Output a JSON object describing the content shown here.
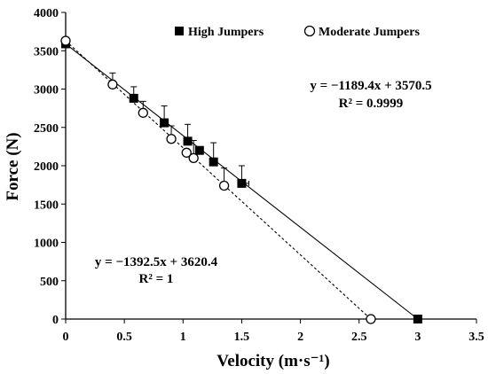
{
  "chart_data": {
    "type": "scatter",
    "xlabel": "Velocity (m·s⁻¹)",
    "ylabel": "Force (N)",
    "xlim": [
      0,
      3.5
    ],
    "ylim": [
      0,
      4000
    ],
    "x_ticks": [
      "0",
      "0.5",
      "1",
      "1.5",
      "2",
      "2.5",
      "3",
      "3.5"
    ],
    "y_ticks": [
      "0",
      "500",
      "1000",
      "1500",
      "2000",
      "2500",
      "3000",
      "3500",
      "4000"
    ],
    "grid": false,
    "legend_position": "top",
    "series": [
      {
        "name": "High Jumpers",
        "marker": "filled-square",
        "line": "solid",
        "color": "#000000",
        "points": [
          {
            "x": 0.0,
            "y": 3590,
            "err": 0
          },
          {
            "x": 0.58,
            "y": 2880,
            "err": 150
          },
          {
            "x": 0.84,
            "y": 2560,
            "err": 220
          },
          {
            "x": 1.04,
            "y": 2320,
            "err": 220
          },
          {
            "x": 1.14,
            "y": 2200,
            "err": 0
          },
          {
            "x": 1.26,
            "y": 2050,
            "err": 250
          },
          {
            "x": 1.5,
            "y": 1770,
            "err": 230
          },
          {
            "x": 3.0,
            "y": 0,
            "err": 0
          }
        ],
        "equation": "y = −1189.4x + 3570.5",
        "r2": "R² = 0.9999"
      },
      {
        "name": "Moderate Jumpers",
        "marker": "open-circle",
        "line": "dashed",
        "color": "#000000",
        "points": [
          {
            "x": 0.0,
            "y": 3630,
            "err": 0
          },
          {
            "x": 0.4,
            "y": 3060,
            "err": 150
          },
          {
            "x": 0.66,
            "y": 2690,
            "err": 150
          },
          {
            "x": 0.9,
            "y": 2350,
            "err": 170
          },
          {
            "x": 1.03,
            "y": 2170,
            "err": 0
          },
          {
            "x": 1.09,
            "y": 2100,
            "err": 230
          },
          {
            "x": 1.35,
            "y": 1740,
            "err": 230
          },
          {
            "x": 2.6,
            "y": 0,
            "err": 0
          }
        ],
        "equation": "y = −1392.5x + 3620.4",
        "r2": "R² = 1"
      }
    ]
  }
}
